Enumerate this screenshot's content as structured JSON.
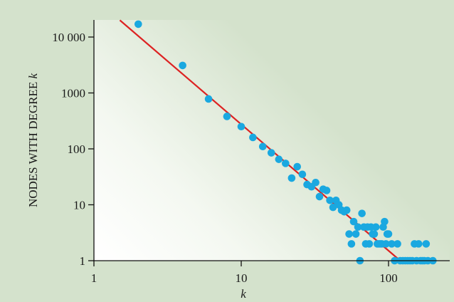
{
  "chart_data": {
    "type": "scatter",
    "scale": "log-log",
    "xlabel": "k",
    "ylabel": "NODES WITH DEGREE k",
    "xlim": [
      1,
      200
    ],
    "ylim": [
      1,
      25000
    ],
    "x_ticks": [
      {
        "value": 1,
        "label": "1"
      },
      {
        "value": 10,
        "label": "10"
      },
      {
        "value": 100,
        "label": "100"
      }
    ],
    "y_ticks": [
      {
        "value": 1,
        "label": "1"
      },
      {
        "value": 10,
        "label": "10"
      },
      {
        "value": 100,
        "label": "100"
      },
      {
        "value": 1000,
        "label": "1000"
      },
      {
        "value": 10000,
        "label": "10 000"
      }
    ],
    "points": [
      [
        2,
        17000
      ],
      [
        4,
        3100
      ],
      [
        6,
        780
      ],
      [
        8,
        380
      ],
      [
        10,
        250
      ],
      [
        12,
        160
      ],
      [
        14,
        110
      ],
      [
        16,
        85
      ],
      [
        18,
        65
      ],
      [
        20,
        55
      ],
      [
        22,
        30
      ],
      [
        24,
        48
      ],
      [
        26,
        35
      ],
      [
        28,
        23
      ],
      [
        30,
        21
      ],
      [
        32,
        25
      ],
      [
        34,
        14
      ],
      [
        36,
        19
      ],
      [
        38,
        18
      ],
      [
        40,
        12
      ],
      [
        42,
        9
      ],
      [
        44,
        12
      ],
      [
        46,
        10
      ],
      [
        48,
        8
      ],
      [
        50,
        7.5
      ],
      [
        52,
        8
      ],
      [
        54,
        3
      ],
      [
        56,
        2
      ],
      [
        58,
        5
      ],
      [
        60,
        3
      ],
      [
        62,
        4
      ],
      [
        64,
        1
      ],
      [
        66,
        7
      ],
      [
        68,
        4
      ],
      [
        70,
        2
      ],
      [
        72,
        4
      ],
      [
        74,
        2
      ],
      [
        76,
        4
      ],
      [
        78,
        3
      ],
      [
        80,
        3
      ],
      [
        82,
        4
      ],
      [
        84,
        2
      ],
      [
        86,
        2
      ],
      [
        88,
        2
      ],
      [
        90,
        2
      ],
      [
        92,
        4
      ],
      [
        94,
        5
      ],
      [
        96,
        2
      ],
      [
        98,
        3
      ],
      [
        100,
        3
      ],
      [
        105,
        2
      ],
      [
        110,
        1
      ],
      [
        115,
        2
      ],
      [
        120,
        1
      ],
      [
        125,
        1
      ],
      [
        130,
        1
      ],
      [
        135,
        1
      ],
      [
        140,
        1
      ],
      [
        145,
        1
      ],
      [
        150,
        2
      ],
      [
        155,
        1
      ],
      [
        160,
        2
      ],
      [
        165,
        1
      ],
      [
        170,
        1
      ],
      [
        175,
        1
      ],
      [
        180,
        2
      ],
      [
        185,
        1
      ],
      [
        200,
        1
      ]
    ],
    "fit_line": {
      "x": [
        1.5,
        120
      ],
      "y": [
        20000,
        1
      ]
    },
    "colors": {
      "points": "#1aa8e0",
      "fit_line": "#dd2222",
      "background": "#d4e2cc"
    },
    "grid": false,
    "legend": "none"
  }
}
